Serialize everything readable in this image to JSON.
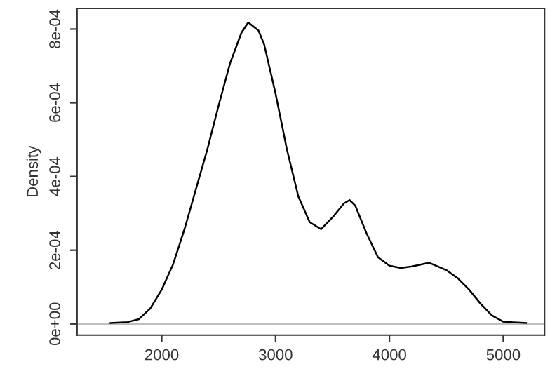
{
  "chart_data": {
    "type": "line",
    "ylabel": "Density",
    "x": [
      1550,
      1700,
      1800,
      1900,
      2000,
      2100,
      2200,
      2300,
      2400,
      2500,
      2600,
      2700,
      2760,
      2850,
      2900,
      3000,
      3100,
      3200,
      3300,
      3400,
      3500,
      3600,
      3650,
      3700,
      3800,
      3900,
      4000,
      4100,
      4200,
      4350,
      4500,
      4600,
      4700,
      4800,
      4900,
      5000,
      5200
    ],
    "series": [
      {
        "color": "#000000",
        "values": [
          2.5e-06,
          5e-06,
          1.3e-05,
          4.2e-05,
          9.3e-05,
          0.000162,
          0.000257,
          0.000365,
          0.000473,
          0.000593,
          0.000707,
          0.00079,
          0.000818,
          0.000796,
          0.000758,
          0.000625,
          0.000473,
          0.000346,
          0.000276,
          0.000257,
          0.000289,
          0.000327,
          0.000336,
          0.000321,
          0.000245,
          0.000181,
          0.000158,
          0.000152,
          0.000156,
          0.000166,
          0.000146,
          0.000124,
          9.3e-05,
          5.5e-05,
          2.3e-05,
          6e-06,
          2.5e-06
        ]
      }
    ],
    "xlim": [
      1256,
      5362
    ],
    "xticks": [
      2000,
      3000,
      4000,
      5000
    ],
    "ylim": [
      -3.04e-05,
      0.000856
    ],
    "yticks": [
      {
        "value": 0,
        "label": "0e+00"
      },
      {
        "value": 0.0002,
        "label": "2e-04"
      },
      {
        "value": 0.0004,
        "label": "4e-04"
      },
      {
        "value": 0.0006,
        "label": "6e-04"
      },
      {
        "value": 0.0008,
        "label": "8e-04"
      }
    ],
    "ref_lines": [
      {
        "axis": "y",
        "value": 0,
        "color": "#bebebe"
      }
    ],
    "grid": false,
    "legend": false
  }
}
